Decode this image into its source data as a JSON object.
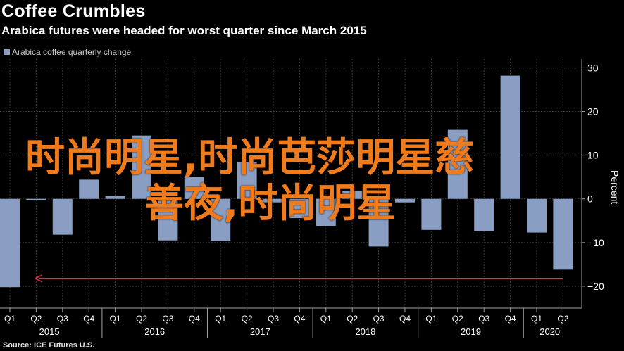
{
  "title": "Coffee Crumbles",
  "subtitle": "Arabica futures were headed for worst quarter since March 2015",
  "source": "Source: ICE Futures U.S.",
  "watermark": {
    "line1": "时尚明星,时尚芭莎明星慈",
    "line2": "善夜,时尚明星"
  },
  "colors": {
    "bar": "#8a9ec4",
    "grid": "#3a3a3a",
    "axis": "#a0a0a0",
    "arrow": "#e2304a",
    "watermark": "#f07b1c"
  },
  "chart_data": {
    "type": "bar",
    "legend": [
      {
        "name": "Arabica coffee quarterly change"
      }
    ],
    "legend_position": "top-left",
    "ylabel": "Percent",
    "ylim": [
      -25,
      32
    ],
    "yticks": [
      30,
      20,
      10,
      0,
      -10,
      -20
    ],
    "grid": true,
    "categories": [
      "Q1",
      "Q2",
      "Q3",
      "Q4",
      "Q1",
      "Q2",
      "Q3",
      "Q4",
      "Q1",
      "Q2",
      "Q3",
      "Q4",
      "Q1",
      "Q2",
      "Q3",
      "Q4",
      "Q1",
      "Q2",
      "Q3",
      "Q4",
      "Q1",
      "Q2"
    ],
    "years": [
      {
        "label": "2015",
        "start": 0,
        "end": 3
      },
      {
        "label": "2016",
        "start": 4,
        "end": 7
      },
      {
        "label": "2017",
        "start": 8,
        "end": 11
      },
      {
        "label": "2018",
        "start": 12,
        "end": 15
      },
      {
        "label": "2019",
        "start": 16,
        "end": 19
      },
      {
        "label": "2020",
        "start": 20,
        "end": 21
      }
    ],
    "series": [
      {
        "name": "Arabica coffee quarterly change",
        "values": [
          -20.2,
          -0.3,
          -8.2,
          4.4,
          0.6,
          14.5,
          -9.5,
          5.0,
          -9.6,
          8.5,
          -0.8,
          -4.4,
          -6.2,
          1.9,
          -10.9,
          -0.8,
          -7.1,
          15.8,
          -7.4,
          28.2,
          -7.7,
          -16.2
        ]
      }
    ]
  }
}
